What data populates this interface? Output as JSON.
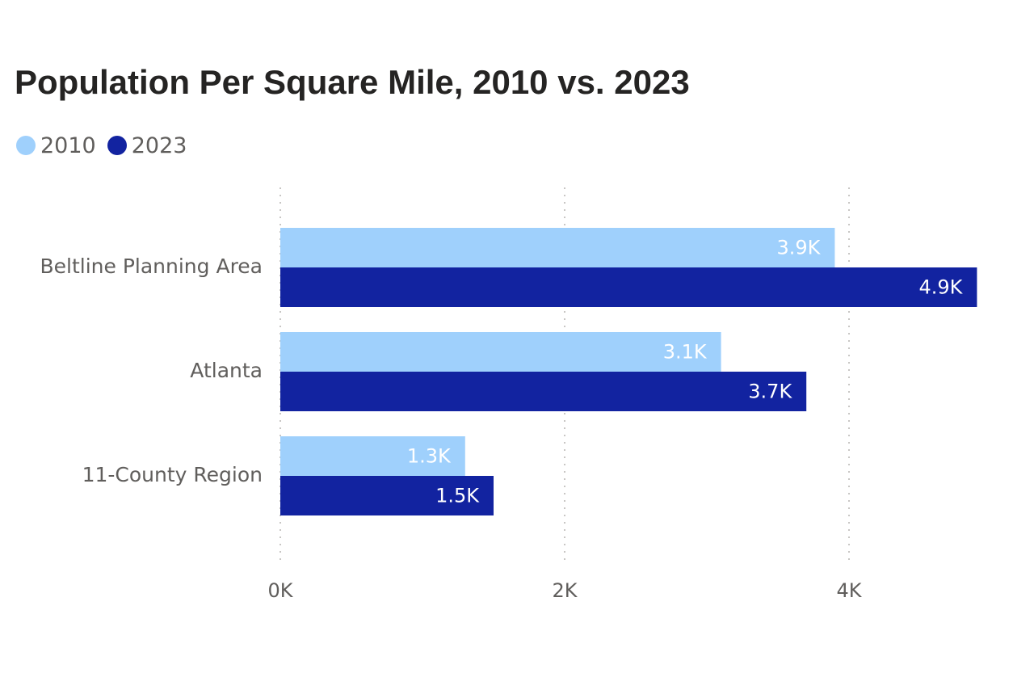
{
  "chart_data": {
    "type": "bar",
    "orientation": "horizontal",
    "title": "Population Per Square Mile, 2010 vs. 2023",
    "categories": [
      "Beltline Planning Area",
      "Atlanta",
      "11-County Region"
    ],
    "series": [
      {
        "name": "2010",
        "color": "#9fd0fc",
        "values": [
          3900,
          3100,
          1300
        ],
        "labels": [
          "3.9K",
          "3.1K",
          "1.3K"
        ]
      },
      {
        "name": "2023",
        "color": "#1223a0",
        "values": [
          4900,
          3700,
          1500
        ],
        "labels": [
          "4.9K",
          "3.7K",
          "1.5K"
        ]
      }
    ],
    "x_ticks": [
      {
        "value": 0,
        "label": "0K"
      },
      {
        "value": 2000,
        "label": "2K"
      },
      {
        "value": 4000,
        "label": "4K"
      }
    ],
    "xlim": [
      0,
      5000
    ],
    "xlabel": "",
    "ylabel": "",
    "grid": "vertical dotted",
    "legend_position": "top-left"
  }
}
